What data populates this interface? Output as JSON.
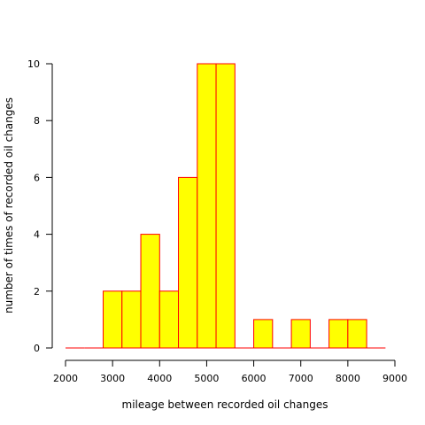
{
  "chart_data": {
    "type": "bar",
    "subtype": "histogram",
    "title": "",
    "xlabel": "mileage between recorded oil changes",
    "ylabel": "number of times of recorded oil changes",
    "xlim": [
      2000,
      9000
    ],
    "ylim": [
      0,
      10
    ],
    "bin_width": 400,
    "bins_start": 2000,
    "counts": [
      0,
      0,
      2,
      2,
      4,
      2,
      6,
      10,
      10,
      0,
      1,
      0,
      1,
      0,
      1,
      1,
      0
    ],
    "x_ticks": [
      2000,
      3000,
      4000,
      5000,
      6000,
      7000,
      8000,
      9000
    ],
    "y_ticks": [
      0,
      2,
      4,
      6,
      8,
      10
    ],
    "bar_fill": "#ffff00",
    "bar_stroke": "#ff0000",
    "grid": false
  }
}
